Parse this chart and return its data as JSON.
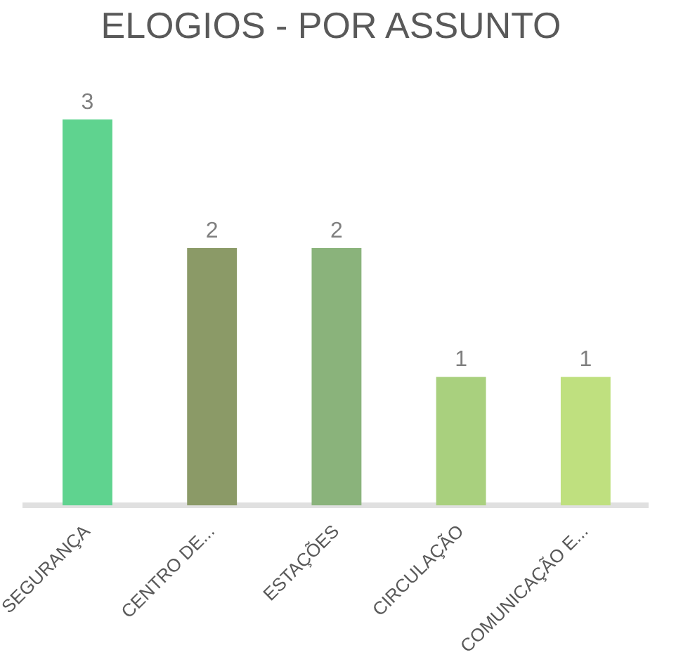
{
  "chart_data": {
    "type": "bar",
    "title": "ELOGIOS - POR ASSUNTO",
    "categories": [
      "SEGURANÇA",
      "CENTRO DE...",
      "ESTAÇÕES",
      "CIRCULAÇÃO",
      "COMUNICAÇÃO E..."
    ],
    "values": [
      3,
      2,
      2,
      1,
      1
    ],
    "colors": [
      "#5fd38f",
      "#8b9a67",
      "#8ab37b",
      "#a9d07e",
      "#bfe07f"
    ],
    "data_labels": true
  }
}
